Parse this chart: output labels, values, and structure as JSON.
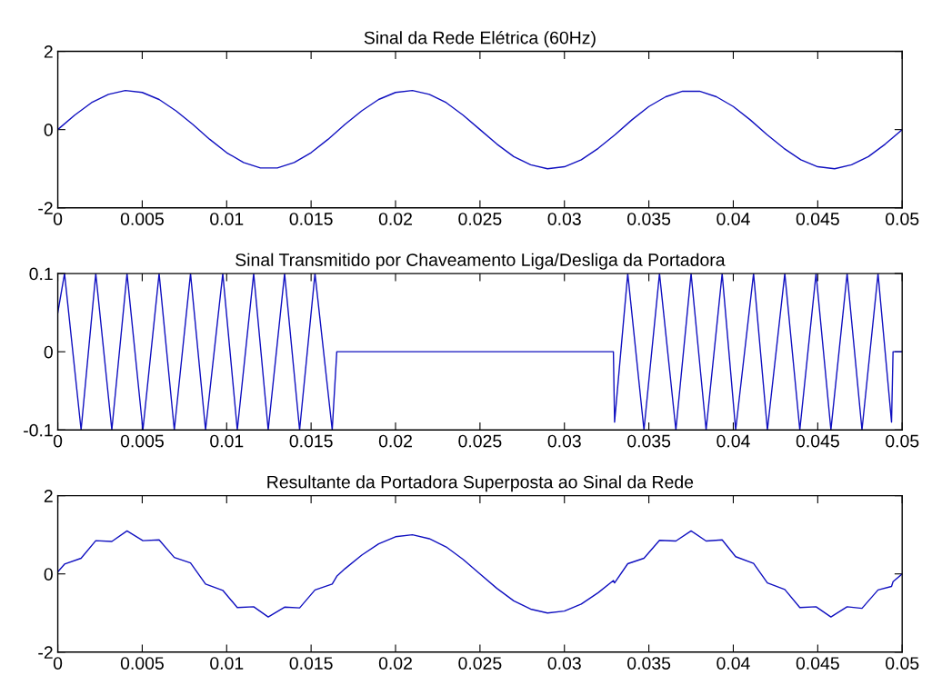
{
  "chart_data": [
    {
      "type": "line",
      "title": "Sinal da Rede Elétrica (60Hz)",
      "xlim": [
        0,
        0.05
      ],
      "ylim": [
        -2,
        2
      ],
      "xticks": [
        0,
        0.005,
        0.01,
        0.015,
        0.02,
        0.025,
        0.03,
        0.035,
        0.04,
        0.045,
        0.05
      ],
      "yticks": [
        -2,
        0,
        2
      ],
      "grid": false,
      "series": [
        {
          "color": "#1010c0",
          "x": [
            0,
            0.001,
            0.002,
            0.003,
            0.004,
            0.005,
            0.006,
            0.007,
            0.008,
            0.009,
            0.01,
            0.011,
            0.012,
            0.013,
            0.014,
            0.015,
            0.016,
            0.017,
            0.018,
            0.019,
            0.02,
            0.021,
            0.022,
            0.023,
            0.024,
            0.025,
            0.026,
            0.027,
            0.028,
            0.029,
            0.03,
            0.031,
            0.032,
            0.033,
            0.034,
            0.035,
            0.036,
            0.037,
            0.038,
            0.039,
            0.04,
            0.041,
            0.042,
            0.043,
            0.044,
            0.045,
            0.046,
            0.047,
            0.048,
            0.049,
            0.05
          ],
          "values": [
            0,
            0.37,
            0.69,
            0.9,
            1,
            0.95,
            0.77,
            0.48,
            0.13,
            -0.25,
            -0.59,
            -0.84,
            -0.98,
            -0.98,
            -0.84,
            -0.59,
            -0.25,
            0.13,
            0.48,
            0.77,
            0.95,
            1,
            0.9,
            0.69,
            0.37,
            0,
            -0.37,
            -0.69,
            -0.9,
            -1,
            -0.95,
            -0.77,
            -0.48,
            -0.13,
            0.25,
            0.59,
            0.84,
            0.98,
            0.98,
            0.84,
            0.59,
            0.25,
            -0.13,
            -0.48,
            -0.77,
            -0.95,
            -1,
            -0.9,
            -0.69,
            -0.37,
            0
          ]
        }
      ]
    },
    {
      "type": "line",
      "title": "Sinal Transmitido por Chaveamento Liga/Desliga da Portadora",
      "xlim": [
        0,
        0.05
      ],
      "ylim": [
        -0.1,
        0.1
      ],
      "xticks": [
        0,
        0.005,
        0.01,
        0.015,
        0.02,
        0.025,
        0.03,
        0.035,
        0.04,
        0.045,
        0.05
      ],
      "yticks": [
        -0.1,
        0,
        0.1
      ],
      "grid": false,
      "series": [
        {
          "color": "#1010c0",
          "x": [
            0,
            0.0004,
            0.00138,
            0.00225,
            0.0032,
            0.0041,
            0.00504,
            0.006,
            0.0069,
            0.00786,
            0.00875,
            0.00977,
            0.01063,
            0.0116,
            0.01246,
            0.01343,
            0.01432,
            0.01523,
            0.01625,
            0.01652,
            0.0329,
            0.03297,
            0.03375,
            0.03471,
            0.03563,
            0.0366,
            0.0375,
            0.03839,
            0.03934,
            0.04014,
            0.0412,
            0.04202,
            0.04305,
            0.04394,
            0.0449,
            0.04578,
            0.04674,
            0.04762,
            0.04857,
            0.04937,
            0.04946,
            0.05
          ],
          "values": [
            0.05,
            0.1,
            -0.1,
            0.1,
            -0.1,
            0.1,
            -0.1,
            0.1,
            -0.1,
            0.1,
            -0.1,
            0.1,
            -0.1,
            0.1,
            -0.1,
            0.1,
            -0.1,
            0.1,
            -0.1,
            0,
            0,
            -0.09,
            0.1,
            -0.1,
            0.1,
            -0.1,
            0.1,
            -0.1,
            0.1,
            -0.1,
            0.1,
            -0.1,
            0.1,
            -0.1,
            0.1,
            -0.1,
            0.1,
            -0.1,
            0.1,
            -0.09,
            0,
            0
          ]
        }
      ]
    },
    {
      "type": "line",
      "title": "Resultante da Portadora Superposta ao Sinal da Rede",
      "xlim": [
        0,
        0.05
      ],
      "ylim": [
        -2,
        2
      ],
      "xticks": [
        0,
        0.005,
        0.01,
        0.015,
        0.02,
        0.025,
        0.03,
        0.035,
        0.04,
        0.045,
        0.05
      ],
      "yticks": [
        -2,
        0,
        2
      ],
      "grid": false,
      "series": [
        {
          "color": "#1010c0",
          "x": [
            0,
            0.0004,
            0.00138,
            0.00225,
            0.0032,
            0.0041,
            0.00504,
            0.006,
            0.0069,
            0.00786,
            0.00875,
            0.00977,
            0.01063,
            0.0116,
            0.01246,
            0.01343,
            0.01432,
            0.01523,
            0.01625,
            0.01652,
            0.017,
            0.018,
            0.019,
            0.02,
            0.021,
            0.022,
            0.023,
            0.024,
            0.025,
            0.026,
            0.027,
            0.028,
            0.029,
            0.03,
            0.031,
            0.032,
            0.0329,
            0.03297,
            0.03375,
            0.03471,
            0.03563,
            0.0366,
            0.0375,
            0.03839,
            0.03934,
            0.04014,
            0.0412,
            0.04202,
            0.04305,
            0.04394,
            0.0449,
            0.04578,
            0.04674,
            0.04762,
            0.04857,
            0.04937,
            0.04946,
            0.05
          ],
          "values": [
            0.05,
            0.25,
            0.4,
            0.85,
            0.83,
            1.1,
            0.85,
            0.87,
            0.42,
            0.28,
            -0.26,
            -0.42,
            -0.86,
            -0.84,
            -1.1,
            -0.85,
            -0.87,
            -0.41,
            -0.26,
            -0.06,
            0.13,
            0.48,
            0.77,
            0.95,
            1,
            0.9,
            0.69,
            0.37,
            0,
            -0.37,
            -0.69,
            -0.9,
            -1,
            -0.95,
            -0.77,
            -0.48,
            -0.17,
            -0.23,
            0.26,
            0.4,
            0.86,
            0.84,
            1.1,
            0.84,
            0.87,
            0.44,
            0.27,
            -0.23,
            -0.4,
            -0.86,
            -0.84,
            -1.1,
            -0.84,
            -0.88,
            -0.41,
            -0.32,
            -0.2,
            0
          ]
        }
      ]
    }
  ]
}
